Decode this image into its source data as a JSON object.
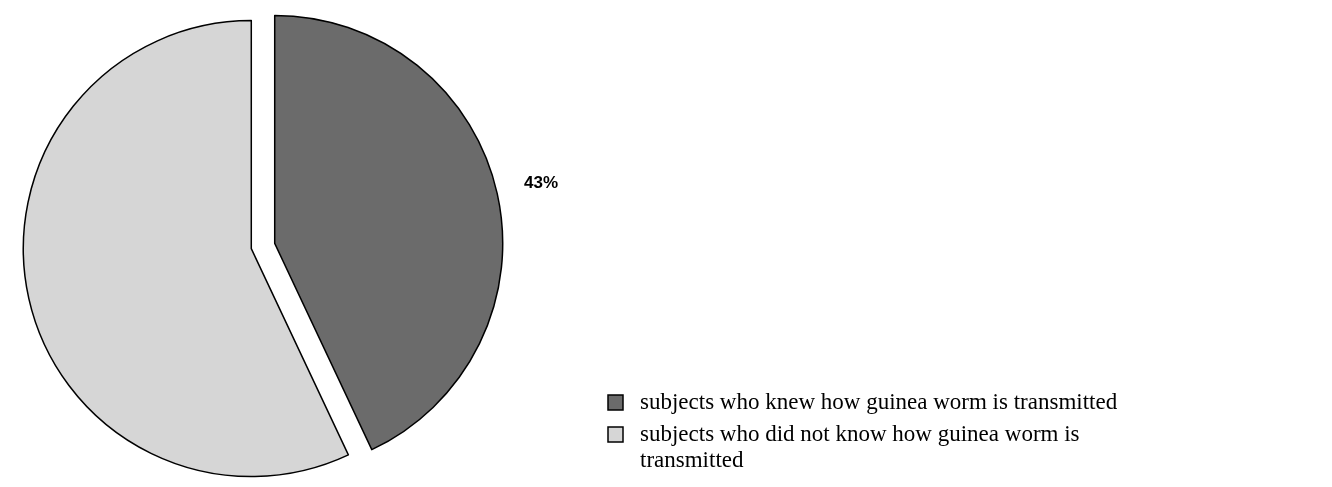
{
  "chart_data": {
    "type": "pie",
    "categories": [
      "subjects who knew how guinea worm is transmitted",
      "subjects who did not know how guinea worm is transmitted"
    ],
    "values": [
      43,
      57
    ],
    "colors": [
      "#6b6b6b",
      "#d6d6d6"
    ],
    "value_labels": [
      "43%",
      null
    ],
    "legend": "bottom right"
  }
}
